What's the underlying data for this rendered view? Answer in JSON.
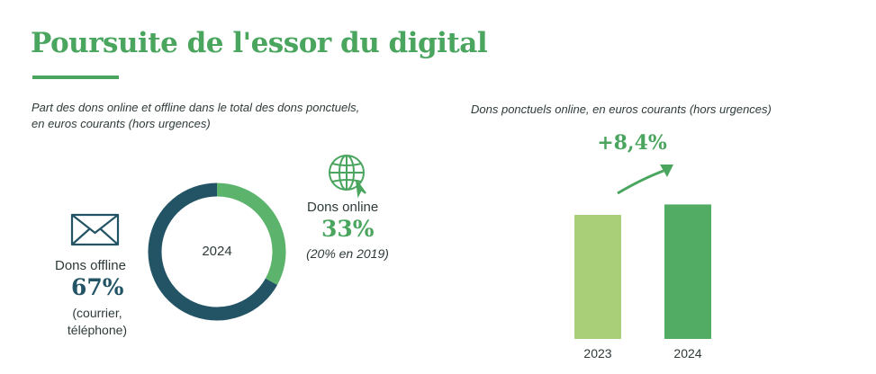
{
  "header": {
    "title": "Poursuite de l'essor du digital"
  },
  "colors": {
    "accent": "#4aa55f",
    "offline": "#235465",
    "online": "#5cb36c",
    "bar2023": "#a9cf78",
    "bar2024": "#52ac63",
    "text": "#2e3a3a"
  },
  "chart_data": [
    {
      "type": "pie",
      "subtitle": "Part des dons online et offline dans le total des dons ponctuels, en euros courants (hors urgences)",
      "center_label": "2024",
      "slices": [
        {
          "name": "Dons offline",
          "value": 67,
          "value_label": "67%",
          "note": "(courrier, téléphone)",
          "icon": "envelope-icon"
        },
        {
          "name": "Dons online",
          "value": 33,
          "value_label": "33%",
          "note": "(20% en 2019)",
          "icon": "globe-icon"
        }
      ]
    },
    {
      "type": "bar",
      "subtitle": "Dons ponctuels online, en euros courants (hors urgences)",
      "categories": [
        "2023",
        "2024"
      ],
      "values": [
        100,
        108.4
      ],
      "growth_label": "+8,4%",
      "icon": "trend-arrow-icon"
    }
  ]
}
